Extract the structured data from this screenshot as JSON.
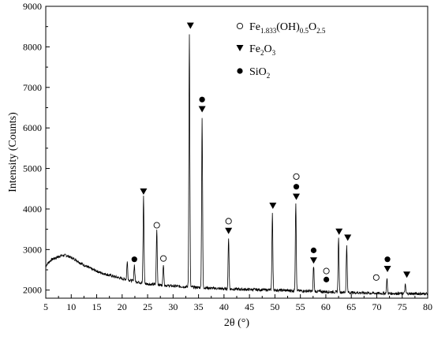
{
  "chart_data": {
    "type": "line",
    "title": "",
    "xlabel": "2θ (°)",
    "ylabel": "Intensity (Counts)",
    "xlim": [
      5,
      80
    ],
    "ylim": [
      1800,
      9000
    ],
    "xticks": [
      5,
      10,
      15,
      20,
      25,
      30,
      35,
      40,
      45,
      50,
      55,
      60,
      65,
      70,
      75,
      80
    ],
    "yticks": [
      2000,
      3000,
      4000,
      5000,
      6000,
      7000,
      8000,
      9000
    ],
    "grid": false,
    "legend_position": "top-right",
    "series": [
      {
        "type": "line",
        "baseline": [
          [
            5,
            2600
          ],
          [
            6,
            2740
          ],
          [
            7,
            2800
          ],
          [
            8,
            2850
          ],
          [
            9,
            2860
          ],
          [
            10,
            2800
          ],
          [
            11,
            2740
          ],
          [
            12,
            2650
          ],
          [
            14,
            2520
          ],
          [
            16,
            2420
          ],
          [
            18,
            2350
          ],
          [
            20,
            2280
          ],
          [
            22,
            2230
          ],
          [
            25,
            2150
          ],
          [
            30,
            2100
          ],
          [
            40,
            2030
          ],
          [
            50,
            2000
          ],
          [
            60,
            1960
          ],
          [
            70,
            1920
          ],
          [
            80,
            1910
          ]
        ],
        "peaks": [
          {
            "x": 21.0,
            "y": 2700
          },
          {
            "x": 22.4,
            "y": 2620
          },
          {
            "x": 24.2,
            "y": 4330
          },
          {
            "x": 26.8,
            "y": 3500
          },
          {
            "x": 28.1,
            "y": 2650
          },
          {
            "x": 33.2,
            "y": 8300
          },
          {
            "x": 35.7,
            "y": 6250
          },
          {
            "x": 40.9,
            "y": 3300
          },
          {
            "x": 49.5,
            "y": 3900
          },
          {
            "x": 54.1,
            "y": 4150
          },
          {
            "x": 57.6,
            "y": 2600
          },
          {
            "x": 62.5,
            "y": 3280
          },
          {
            "x": 64.1,
            "y": 3120
          },
          {
            "x": 72.0,
            "y": 2280
          },
          {
            "x": 75.6,
            "y": 2130
          }
        ]
      }
    ],
    "legend": [
      {
        "marker": "open-circle",
        "text": "Fe",
        "sub1": "1.833",
        "mid": "(OH)",
        "sub2": "0.5",
        "tail": "O",
        "sub3": "2.5"
      },
      {
        "marker": "down-triangle",
        "text": "Fe",
        "sub1": "2",
        "mid": "O",
        "sub2": "3"
      },
      {
        "marker": "filled-circle",
        "text": "SiO",
        "sub1": "2"
      }
    ],
    "annotations": [
      {
        "marker": "filled-circle",
        "x": 22.4,
        "y": 2760
      },
      {
        "marker": "down-triangle",
        "x": 24.2,
        "y": 4430
      },
      {
        "marker": "open-circle",
        "x": 26.8,
        "y": 3600
      },
      {
        "marker": "open-circle",
        "x": 28.1,
        "y": 2780
      },
      {
        "marker": "down-triangle",
        "x": 33.4,
        "y": 8520
      },
      {
        "marker": "filled-circle",
        "x": 35.7,
        "y": 6700
      },
      {
        "marker": "down-triangle",
        "x": 35.7,
        "y": 6460
      },
      {
        "marker": "open-circle",
        "x": 40.9,
        "y": 3700
      },
      {
        "marker": "down-triangle",
        "x": 40.9,
        "y": 3460
      },
      {
        "marker": "down-triangle",
        "x": 49.6,
        "y": 4080
      },
      {
        "marker": "open-circle",
        "x": 54.2,
        "y": 4800
      },
      {
        "marker": "filled-circle",
        "x": 54.2,
        "y": 4550
      },
      {
        "marker": "down-triangle",
        "x": 54.2,
        "y": 4300
      },
      {
        "marker": "filled-circle",
        "x": 57.6,
        "y": 2980
      },
      {
        "marker": "down-triangle",
        "x": 57.6,
        "y": 2730
      },
      {
        "marker": "open-circle",
        "x": 60.1,
        "y": 2470
      },
      {
        "marker": "filled-circle",
        "x": 60.1,
        "y": 2260
      },
      {
        "marker": "down-triangle",
        "x": 62.6,
        "y": 3440
      },
      {
        "marker": "down-triangle",
        "x": 64.3,
        "y": 3290
      },
      {
        "marker": "open-circle",
        "x": 69.9,
        "y": 2310
      },
      {
        "marker": "filled-circle",
        "x": 72.1,
        "y": 2760
      },
      {
        "marker": "down-triangle",
        "x": 72.1,
        "y": 2520
      },
      {
        "marker": "down-triangle",
        "x": 75.9,
        "y": 2380
      }
    ],
    "colors": {
      "line": "#000000",
      "background": "#ffffff"
    }
  }
}
